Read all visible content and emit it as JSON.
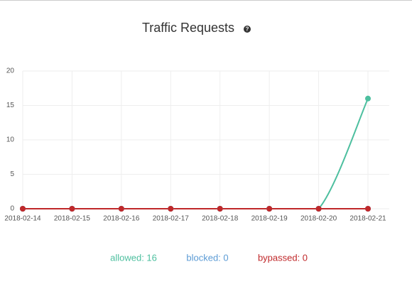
{
  "chart_data": {
    "type": "line",
    "title": "Traffic Requests",
    "x": [
      "2018-02-14",
      "2018-02-15",
      "2018-02-16",
      "2018-02-17",
      "2018-02-18",
      "2018-02-19",
      "2018-02-20",
      "2018-02-21"
    ],
    "series": [
      {
        "name": "allowed",
        "label": "allowed: 16",
        "color": "#4dbf9f",
        "values": [
          0,
          0,
          0,
          0,
          0,
          0,
          0,
          16
        ]
      },
      {
        "name": "blocked",
        "label": "blocked: 0",
        "color": "#5b9bd5",
        "values": [
          0,
          0,
          0,
          0,
          0,
          0,
          0,
          0
        ]
      },
      {
        "name": "bypassed",
        "label": "bypassed: 0",
        "color": "#c0282a",
        "values": [
          0,
          0,
          0,
          0,
          0,
          0,
          0,
          0
        ]
      }
    ],
    "ylim": [
      0,
      20
    ],
    "yticks": [
      0,
      5,
      10,
      15,
      20
    ],
    "grid": true
  }
}
